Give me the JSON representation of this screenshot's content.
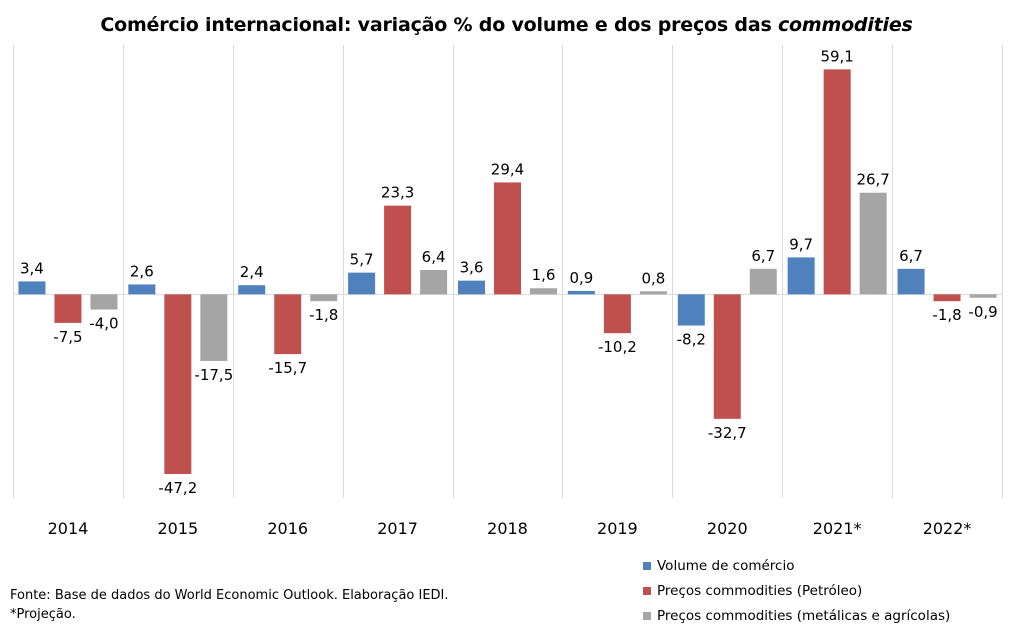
{
  "title": {
    "prefix": "Comércio internacional: variação % do volume e dos preços das ",
    "italic": "commodities"
  },
  "colors": {
    "volume": "#4F81BD",
    "petroleo": "#C0504D",
    "metalicas": "#A5A5A5",
    "grid": "#D9D9D9"
  },
  "chart_data": {
    "type": "bar",
    "title": "Comércio internacional: variação % do volume e dos preços das commodities",
    "categories": [
      "2014",
      "2015",
      "2016",
      "2017",
      "2018",
      "2019",
      "2020",
      "2021*",
      "2022*"
    ],
    "series": [
      {
        "name": "Volume de comércio",
        "color": "#4F81BD",
        "values": [
          3.4,
          2.6,
          2.4,
          5.7,
          3.6,
          0.9,
          -8.2,
          9.7,
          6.7
        ],
        "labels": [
          "3,4",
          "2,6",
          "2,4",
          "5,7",
          "3,6",
          "0,9",
          "-8,2",
          "9,7",
          "6,7"
        ]
      },
      {
        "name": "Preços commodities (Petróleo)",
        "color": "#C0504D",
        "values": [
          -7.5,
          -47.2,
          -15.7,
          23.3,
          29.4,
          -10.2,
          -32.7,
          59.1,
          -1.8
        ],
        "labels": [
          "-7,5",
          "-47,2",
          "-15,7",
          "23,3",
          "29,4",
          "-10,2",
          "-32,7",
          "59,1",
          "-1,8"
        ]
      },
      {
        "name": "Preços commodities (metálicas e agrícolas)",
        "color": "#A5A5A5",
        "values": [
          -4.0,
          -17.5,
          -1.8,
          6.4,
          1.6,
          0.8,
          6.7,
          26.7,
          -0.9
        ],
        "labels": [
          "-4,0",
          "-17,5",
          "-1,8",
          "6,4",
          "1,6",
          "0,8",
          "6,7",
          "26,7",
          "-0,9"
        ]
      }
    ],
    "ylim": [
      -53.5,
      65.5
    ],
    "y_axis_visible": false,
    "vertical_category_dividers": true,
    "legend_position": "bottom-right"
  },
  "legend": [
    {
      "label": "Volume de comércio",
      "color": "#4F81BD"
    },
    {
      "label": "Preços commodities (Petróleo)",
      "color": "#C0504D"
    },
    {
      "label": "Preços commodities (metálicas e agrícolas)",
      "color": "#A5A5A5"
    }
  ],
  "source": {
    "line1": "Fonte: Base de dados do World Economic Outlook. Elaboração IEDI.",
    "line2": "*Projeção."
  }
}
